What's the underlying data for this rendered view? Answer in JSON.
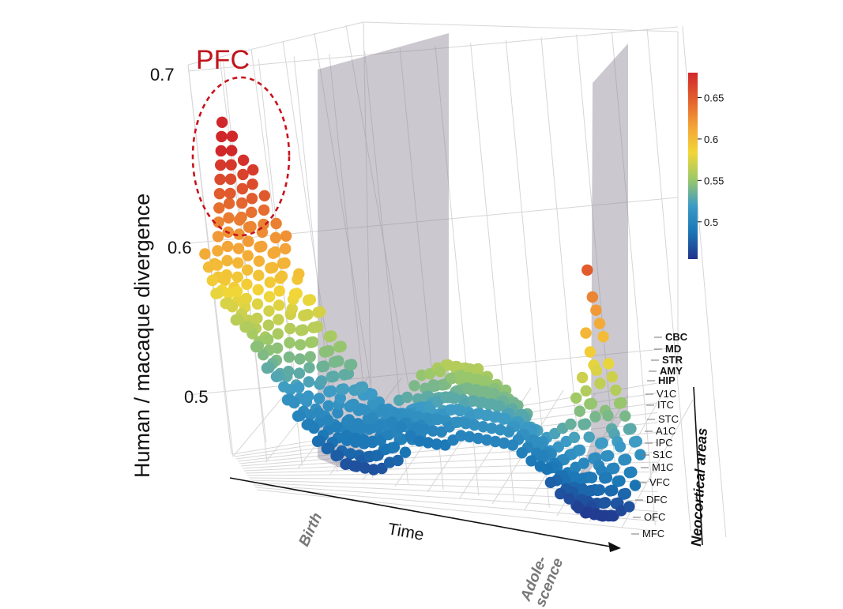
{
  "chart_data": {
    "type": "scatter",
    "subtype": "3d-trajectories",
    "zlabel": "Human / macaque divergence",
    "z_ticks": [
      "0.5",
      "0.6",
      "0.7"
    ],
    "zlim": [
      0.45,
      0.72
    ],
    "xlabel": "Time",
    "time_markers": [
      "Birth",
      "Adole-\nscence"
    ],
    "colorbar": {
      "ticks": [
        "0.5",
        "0.55",
        "0.6",
        "0.65"
      ],
      "range": [
        0.455,
        0.68
      ],
      "colors": [
        "#23328a",
        "#1a75b5",
        "#3c9bc6",
        "#9cc869",
        "#f2d637",
        "#f3a237",
        "#e25f2d",
        "#d0282a"
      ]
    },
    "highlight_label": "PFC",
    "neocortical_group_label": "Neocortical areas",
    "regions": [
      {
        "name": "CBC",
        "bold": true
      },
      {
        "name": "MD",
        "bold": true
      },
      {
        "name": "STR",
        "bold": true
      },
      {
        "name": "AMY",
        "bold": true
      },
      {
        "name": "HIP",
        "bold": true
      },
      {
        "name": "V1C",
        "bold": false
      },
      {
        "name": "ITC",
        "bold": false
      },
      {
        "name": "STC",
        "bold": false
      },
      {
        "name": "A1C",
        "bold": false
      },
      {
        "name": "IPC",
        "bold": false
      },
      {
        "name": "S1C",
        "bold": false
      },
      {
        "name": "M1C",
        "bold": false
      },
      {
        "name": "VFC",
        "bold": false
      },
      {
        "name": "DFC",
        "bold": false
      },
      {
        "name": "OFC",
        "bold": false
      },
      {
        "name": "MFC",
        "bold": false
      }
    ],
    "time_points": [
      0,
      0.06,
      0.12,
      0.18,
      0.24,
      0.3,
      0.36,
      0.42,
      0.48,
      0.54,
      0.6,
      0.66,
      0.72,
      0.78,
      0.84,
      0.9,
      0.96,
      1.0
    ],
    "series": [
      {
        "name": "CBC",
        "values": [
          0.61,
          0.59,
          0.56,
          0.53,
          0.51,
          0.5,
          0.5,
          0.51,
          0.53,
          0.55,
          0.56,
          0.56,
          0.55,
          0.54,
          0.52,
          0.53,
          0.57,
          0.65
        ]
      },
      {
        "name": "MD",
        "values": [
          0.6,
          0.58,
          0.55,
          0.52,
          0.5,
          0.49,
          0.49,
          0.5,
          0.52,
          0.54,
          0.56,
          0.56,
          0.55,
          0.53,
          0.51,
          0.52,
          0.56,
          0.63
        ]
      },
      {
        "name": "STR",
        "values": [
          0.59,
          0.57,
          0.54,
          0.51,
          0.49,
          0.48,
          0.48,
          0.49,
          0.51,
          0.53,
          0.55,
          0.55,
          0.54,
          0.52,
          0.5,
          0.51,
          0.55,
          0.62
        ]
      },
      {
        "name": "AMY",
        "values": [
          0.58,
          0.56,
          0.53,
          0.5,
          0.48,
          0.47,
          0.48,
          0.49,
          0.51,
          0.53,
          0.55,
          0.56,
          0.55,
          0.53,
          0.5,
          0.51,
          0.55,
          0.61
        ]
      },
      {
        "name": "HIP",
        "values": [
          0.58,
          0.56,
          0.53,
          0.5,
          0.48,
          0.47,
          0.47,
          0.48,
          0.5,
          0.52,
          0.54,
          0.55,
          0.54,
          0.52,
          0.49,
          0.5,
          0.54,
          0.6
        ]
      },
      {
        "name": "V1C",
        "values": [
          0.6,
          0.58,
          0.55,
          0.52,
          0.5,
          0.49,
          0.49,
          0.5,
          0.52,
          0.54,
          0.55,
          0.55,
          0.54,
          0.52,
          0.49,
          0.49,
          0.52,
          0.58
        ]
      },
      {
        "name": "ITC",
        "values": [
          0.61,
          0.59,
          0.56,
          0.53,
          0.51,
          0.5,
          0.5,
          0.51,
          0.52,
          0.54,
          0.55,
          0.55,
          0.54,
          0.52,
          0.49,
          0.49,
          0.52,
          0.57
        ]
      },
      {
        "name": "STC",
        "values": [
          0.62,
          0.6,
          0.57,
          0.54,
          0.52,
          0.5,
          0.5,
          0.51,
          0.52,
          0.53,
          0.54,
          0.54,
          0.53,
          0.51,
          0.49,
          0.49,
          0.51,
          0.56
        ]
      },
      {
        "name": "A1C",
        "values": [
          0.63,
          0.61,
          0.58,
          0.55,
          0.52,
          0.51,
          0.5,
          0.51,
          0.52,
          0.53,
          0.54,
          0.54,
          0.53,
          0.51,
          0.48,
          0.48,
          0.51,
          0.55
        ]
      },
      {
        "name": "IPC",
        "values": [
          0.64,
          0.62,
          0.59,
          0.56,
          0.53,
          0.51,
          0.51,
          0.51,
          0.52,
          0.53,
          0.54,
          0.54,
          0.53,
          0.51,
          0.48,
          0.48,
          0.5,
          0.55
        ]
      },
      {
        "name": "S1C",
        "values": [
          0.65,
          0.63,
          0.6,
          0.56,
          0.53,
          0.51,
          0.5,
          0.51,
          0.52,
          0.53,
          0.53,
          0.53,
          0.52,
          0.5,
          0.48,
          0.48,
          0.5,
          0.54
        ]
      },
      {
        "name": "M1C",
        "values": [
          0.66,
          0.63,
          0.6,
          0.57,
          0.54,
          0.52,
          0.51,
          0.51,
          0.51,
          0.52,
          0.53,
          0.53,
          0.52,
          0.5,
          0.47,
          0.47,
          0.49,
          0.53
        ]
      },
      {
        "name": "VFC",
        "values": [
          0.67,
          0.64,
          0.61,
          0.57,
          0.54,
          0.52,
          0.51,
          0.51,
          0.51,
          0.52,
          0.52,
          0.52,
          0.51,
          0.49,
          0.47,
          0.47,
          0.49,
          0.53
        ]
      },
      {
        "name": "DFC",
        "values": [
          0.68,
          0.65,
          0.61,
          0.57,
          0.54,
          0.52,
          0.51,
          0.5,
          0.51,
          0.51,
          0.52,
          0.52,
          0.51,
          0.49,
          0.47,
          0.46,
          0.48,
          0.52
        ]
      },
      {
        "name": "OFC",
        "values": [
          0.69,
          0.66,
          0.62,
          0.58,
          0.55,
          0.52,
          0.51,
          0.5,
          0.5,
          0.51,
          0.51,
          0.51,
          0.5,
          0.48,
          0.46,
          0.46,
          0.48,
          0.52
        ]
      },
      {
        "name": "MFC",
        "values": [
          0.7,
          0.67,
          0.63,
          0.58,
          0.55,
          0.52,
          0.5,
          0.49,
          0.49,
          0.5,
          0.5,
          0.5,
          0.49,
          0.47,
          0.46,
          0.46,
          0.47,
          0.51
        ]
      }
    ]
  }
}
